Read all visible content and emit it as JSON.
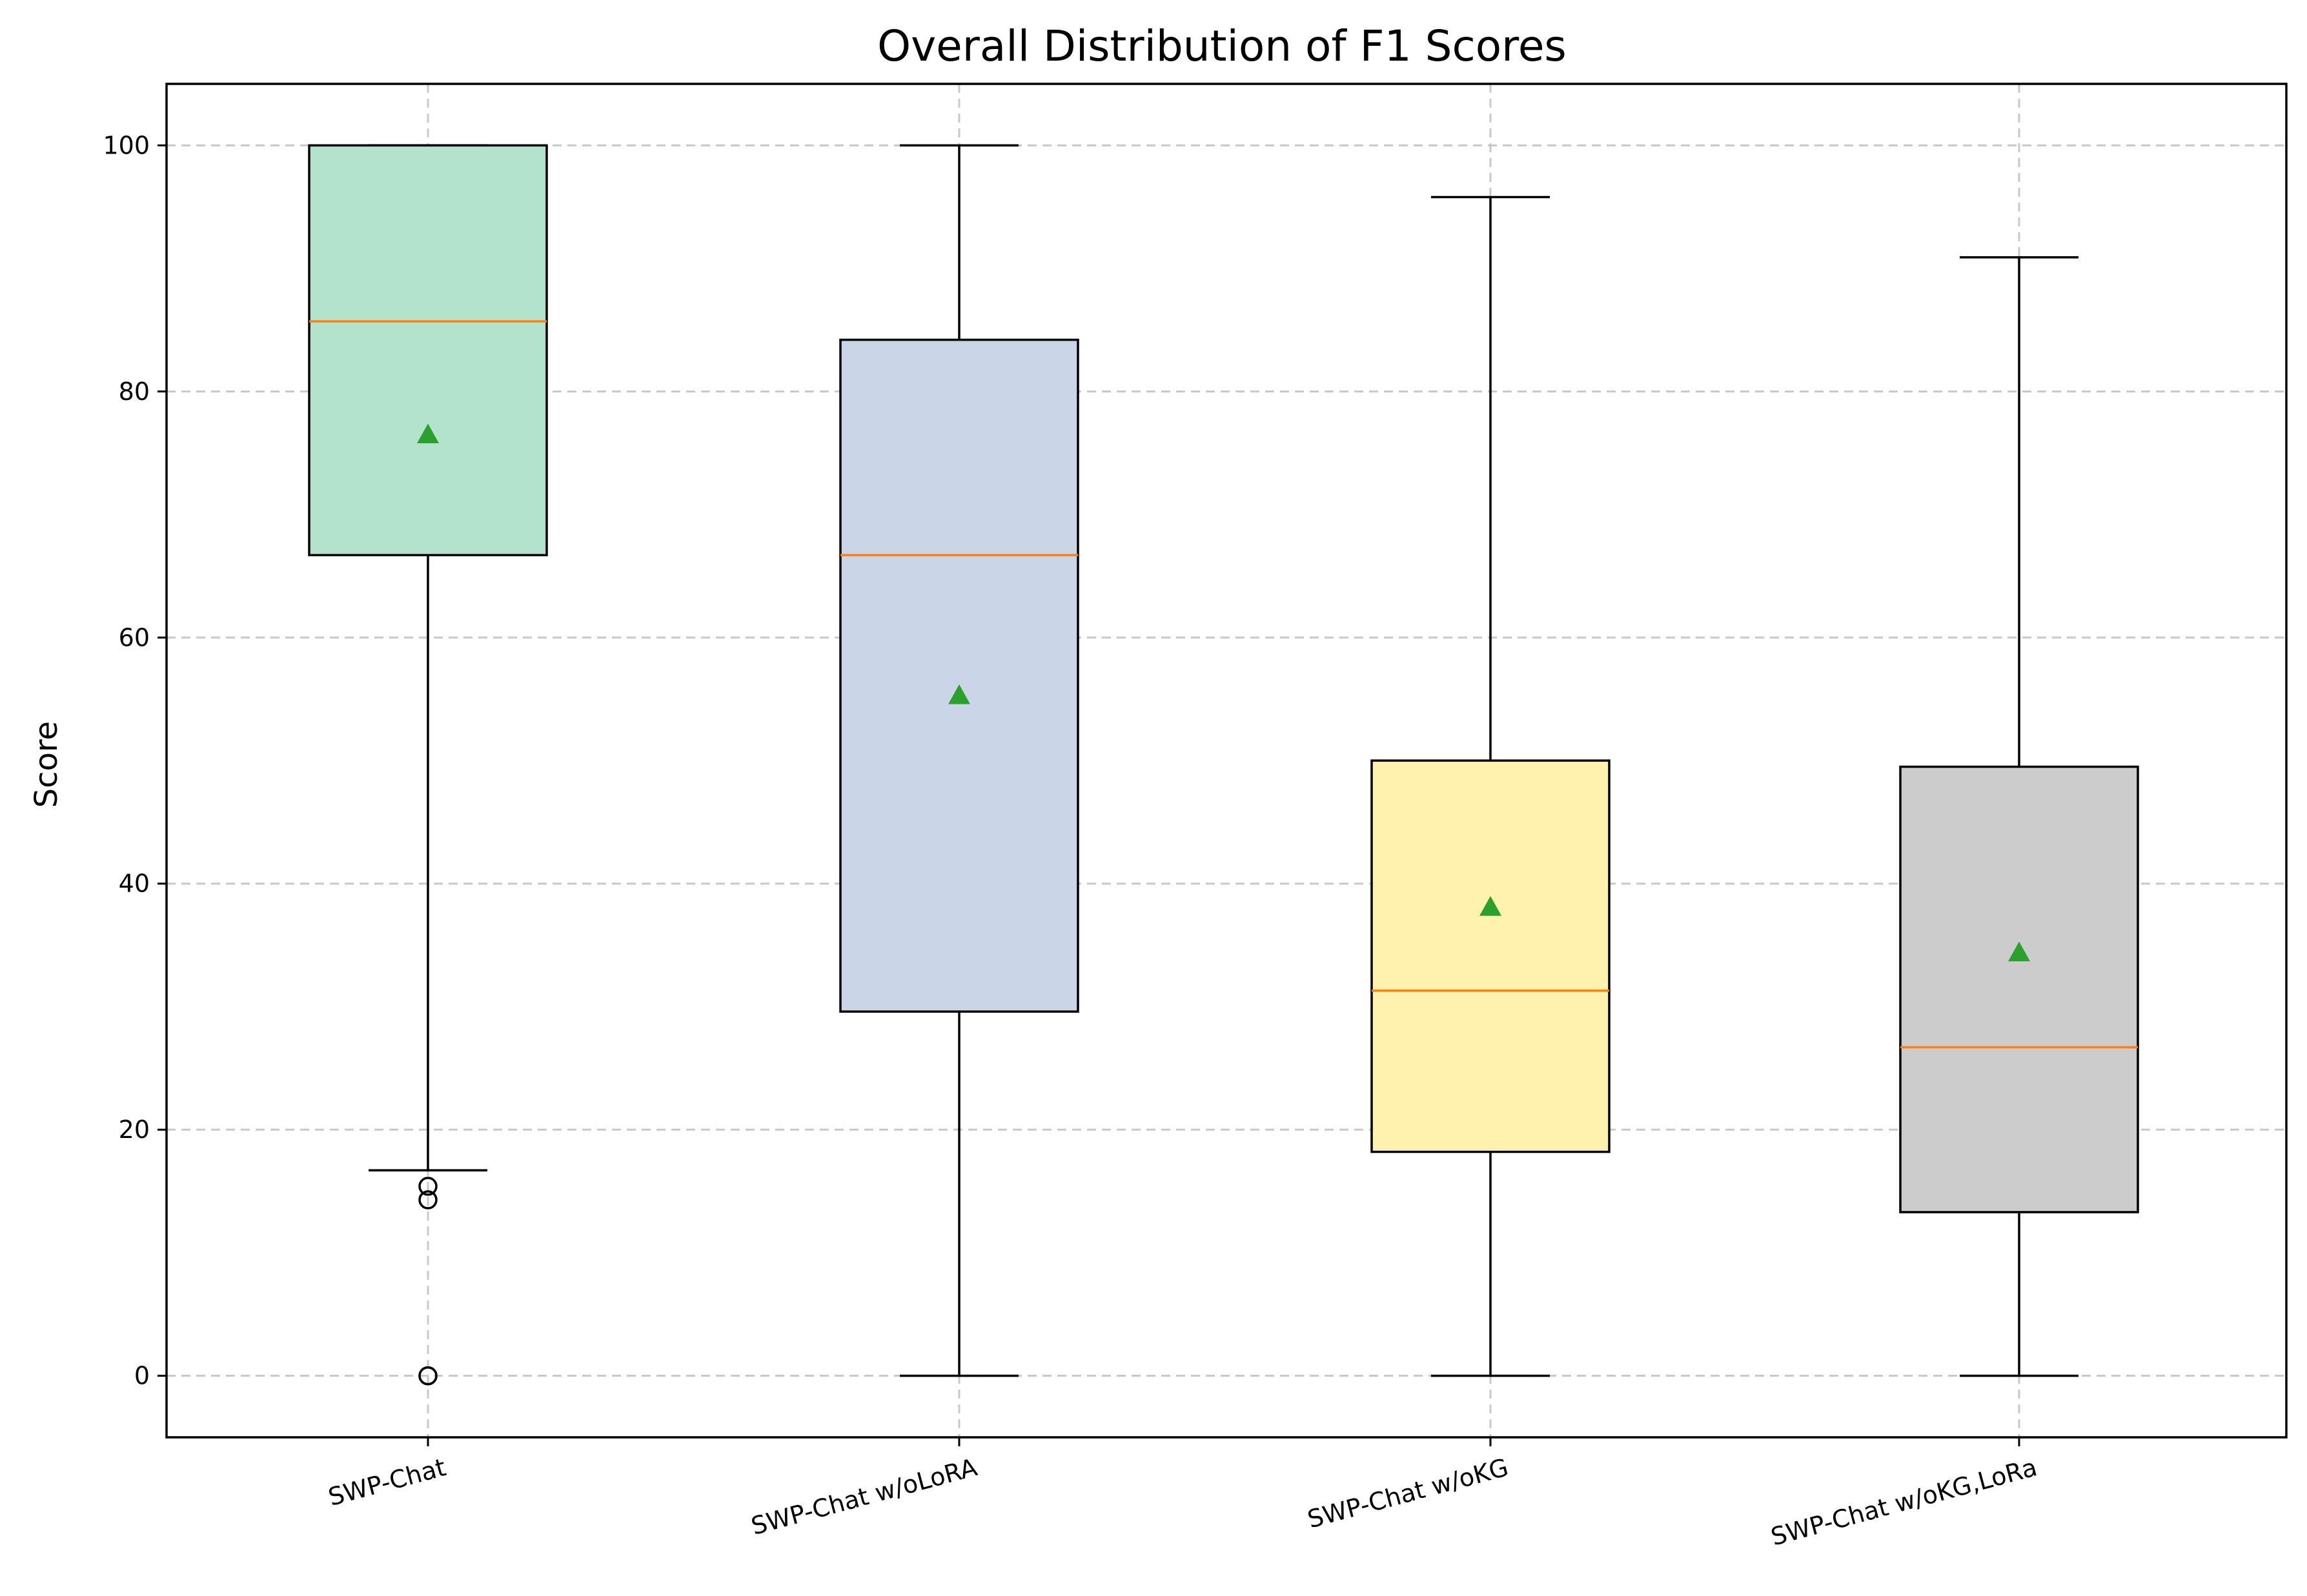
{
  "chart_data": {
    "type": "box",
    "title": "Overall Distribution of F1 Scores",
    "xlabel": "",
    "ylabel": "Score",
    "ylim": [
      -5,
      105
    ],
    "yticks": [
      0,
      20,
      40,
      60,
      80,
      100
    ],
    "grid": true,
    "categories": [
      "SWP-Chat",
      "SWP-Chat w/oLoRA",
      "SWP-Chat w/oKG",
      "SWP-Chat w/oKG,LoRa"
    ],
    "series": [
      {
        "name": "SWP-Chat",
        "whisker_low": 16.7,
        "q1": 66.7,
        "median": 85.7,
        "q3": 100,
        "whisker_high": 100,
        "mean": 76.5,
        "outliers": [
          15.4,
          14.3,
          0,
          0
        ],
        "color": "#b3e2cd"
      },
      {
        "name": "SWP-Chat w/oLoRA",
        "whisker_low": 0,
        "q1": 29.6,
        "median": 66.7,
        "q3": 84.2,
        "whisker_high": 100,
        "mean": 55.3,
        "outliers": [],
        "color": "#cbd5e8"
      },
      {
        "name": "SWP-Chat w/oKG",
        "whisker_low": 0,
        "q1": 18.2,
        "median": 31.3,
        "q3": 50.0,
        "whisker_high": 95.8,
        "mean": 38.1,
        "outliers": [],
        "color": "#fff2ae"
      },
      {
        "name": "SWP-Chat w/oKG,LoRa",
        "whisker_low": 0,
        "q1": 13.3,
        "median": 26.7,
        "q3": 49.5,
        "whisker_high": 90.9,
        "mean": 34.4,
        "outliers": [],
        "color": "#cccccc"
      }
    ],
    "median_color": "#ff7f0e",
    "mean_marker_color": "#2ca02c"
  }
}
